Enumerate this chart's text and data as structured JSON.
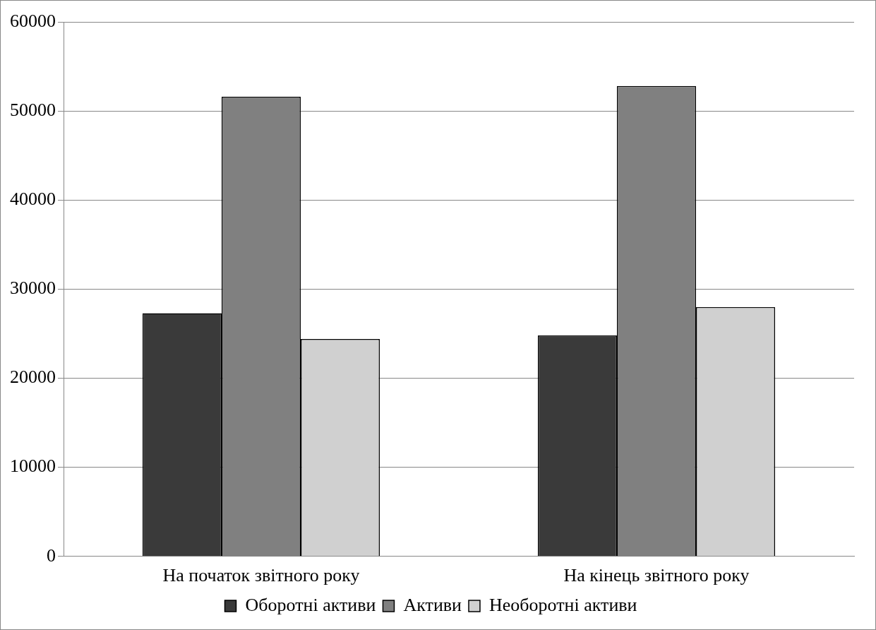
{
  "chart_data": {
    "type": "bar",
    "categories": [
      "На початок звітного року",
      "На кінець звітного року"
    ],
    "series": [
      {
        "name": "Оборотні активи",
        "color": "#3a3a3a",
        "values": [
          27300,
          24800
        ]
      },
      {
        "name": "Активи",
        "color": "#808080",
        "values": [
          51600,
          52800
        ]
      },
      {
        "name": "Необоротні активи",
        "color": "#d0d0d0",
        "values": [
          24400,
          28000
        ]
      }
    ],
    "ylim": [
      0,
      60000
    ],
    "yticks": [
      0,
      10000,
      20000,
      30000,
      40000,
      50000,
      60000
    ],
    "grid": "y",
    "legend": "bottom"
  }
}
